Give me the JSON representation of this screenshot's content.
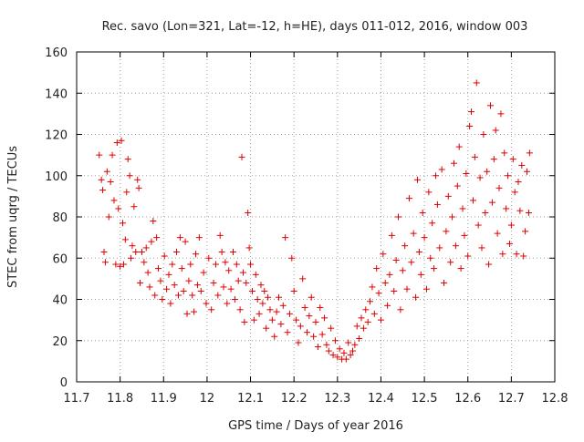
{
  "chart_data": {
    "type": "scatter",
    "title": "Rec. savo (Lon=321, Lat=-12, h=HE), days 011-012, 2016, window 003",
    "xlabel": "GPS time / Days of year 2016",
    "ylabel": "STEC from uqrg / TECUs",
    "xlim": [
      11.7,
      12.8
    ],
    "ylim": [
      0,
      160
    ],
    "xticks": [
      11.7,
      11.8,
      11.9,
      12,
      12.1,
      12.2,
      12.3,
      12.4,
      12.5,
      12.6,
      12.7,
      12.8
    ],
    "xtick_labels": [
      "11.7",
      "11.8",
      "11.9",
      "12",
      "12.1",
      "12.2",
      "12.3",
      "12.4",
      "12.5",
      "12.6",
      "12.7",
      "12.8"
    ],
    "yticks": [
      0,
      20,
      40,
      60,
      80,
      100,
      120,
      140,
      160
    ],
    "ytick_labels": [
      "0",
      "20",
      "40",
      "60",
      "80",
      "100",
      "120",
      "140",
      "160"
    ],
    "grid": true,
    "marker": "+",
    "color": "#dd0000",
    "series": [
      {
        "name": "STEC",
        "points": [
          [
            11.752,
            110
          ],
          [
            11.757,
            98
          ],
          [
            11.76,
            93
          ],
          [
            11.763,
            63
          ],
          [
            11.766,
            58
          ],
          [
            11.77,
            102
          ],
          [
            11.774,
            80
          ],
          [
            11.778,
            97
          ],
          [
            11.782,
            110
          ],
          [
            11.786,
            88
          ],
          [
            11.79,
            57
          ],
          [
            11.793,
            116
          ],
          [
            11.796,
            84
          ],
          [
            11.8,
            56
          ],
          [
            11.803,
            117
          ],
          [
            11.806,
            77
          ],
          [
            11.808,
            57
          ],
          [
            11.812,
            69
          ],
          [
            11.815,
            92
          ],
          [
            11.818,
            108
          ],
          [
            11.822,
            100
          ],
          [
            11.825,
            60
          ],
          [
            11.828,
            66
          ],
          [
            11.832,
            85
          ],
          [
            11.836,
            63
          ],
          [
            11.84,
            98
          ],
          [
            11.843,
            94
          ],
          [
            11.846,
            48
          ],
          [
            11.85,
            63
          ],
          [
            11.855,
            58
          ],
          [
            11.86,
            65
          ],
          [
            11.864,
            53
          ],
          [
            11.868,
            46
          ],
          [
            11.872,
            68
          ],
          [
            11.876,
            78
          ],
          [
            11.88,
            42
          ],
          [
            11.884,
            70
          ],
          [
            11.888,
            55
          ],
          [
            11.893,
            49
          ],
          [
            11.897,
            40
          ],
          [
            11.902,
            61
          ],
          [
            11.907,
            45
          ],
          [
            11.912,
            52
          ],
          [
            11.916,
            38
          ],
          [
            11.92,
            57
          ],
          [
            11.925,
            47
          ],
          [
            11.93,
            63
          ],
          [
            11.934,
            42
          ],
          [
            11.938,
            70
          ],
          [
            11.942,
            55
          ],
          [
            11.946,
            44
          ],
          [
            11.95,
            68
          ],
          [
            11.954,
            33
          ],
          [
            11.958,
            49
          ],
          [
            11.962,
            57
          ],
          [
            11.966,
            42
          ],
          [
            11.97,
            34
          ],
          [
            11.974,
            62
          ],
          [
            11.978,
            47
          ],
          [
            11.982,
            70
          ],
          [
            11.986,
            44
          ],
          [
            11.992,
            53
          ],
          [
            11.998,
            38
          ],
          [
            12.004,
            60
          ],
          [
            12.01,
            35
          ],
          [
            12.015,
            48
          ],
          [
            12.02,
            57
          ],
          [
            12.025,
            42
          ],
          [
            12.03,
            71
          ],
          [
            12.034,
            63
          ],
          [
            12.038,
            46
          ],
          [
            12.042,
            58
          ],
          [
            12.046,
            38
          ],
          [
            12.05,
            54
          ],
          [
            12.055,
            45
          ],
          [
            12.06,
            63
          ],
          [
            12.064,
            40
          ],
          [
            12.068,
            57
          ],
          [
            12.072,
            49
          ],
          [
            12.076,
            35
          ],
          [
            12.08,
            109
          ],
          [
            12.083,
            53
          ],
          [
            12.086,
            29
          ],
          [
            12.09,
            48
          ],
          [
            12.094,
            82
          ],
          [
            12.097,
            65
          ],
          [
            12.1,
            57
          ],
          [
            12.104,
            44
          ],
          [
            12.108,
            30
          ],
          [
            12.112,
            52
          ],
          [
            12.116,
            40
          ],
          [
            12.12,
            33
          ],
          [
            12.124,
            47
          ],
          [
            12.128,
            38
          ],
          [
            12.132,
            44
          ],
          [
            12.136,
            26
          ],
          [
            12.14,
            41
          ],
          [
            12.145,
            35
          ],
          [
            12.15,
            30
          ],
          [
            12.155,
            22
          ],
          [
            12.16,
            34
          ],
          [
            12.165,
            41
          ],
          [
            12.17,
            28
          ],
          [
            12.175,
            37
          ],
          [
            12.18,
            70
          ],
          [
            12.185,
            24
          ],
          [
            12.19,
            33
          ],
          [
            12.195,
            60
          ],
          [
            12.2,
            44
          ],
          [
            12.205,
            30
          ],
          [
            12.21,
            19
          ],
          [
            12.215,
            27
          ],
          [
            12.22,
            50
          ],
          [
            12.225,
            36
          ],
          [
            12.23,
            24
          ],
          [
            12.235,
            32
          ],
          [
            12.24,
            41
          ],
          [
            12.245,
            22
          ],
          [
            12.25,
            29
          ],
          [
            12.255,
            17
          ],
          [
            12.26,
            36
          ],
          [
            12.265,
            23
          ],
          [
            12.27,
            31
          ],
          [
            12.275,
            18
          ],
          [
            12.28,
            15
          ],
          [
            12.285,
            26
          ],
          [
            12.29,
            13
          ],
          [
            12.295,
            20
          ],
          [
            12.3,
            12
          ],
          [
            12.305,
            16
          ],
          [
            12.31,
            11
          ],
          [
            12.315,
            14
          ],
          [
            12.32,
            11
          ],
          [
            12.325,
            19
          ],
          [
            12.33,
            13
          ],
          [
            12.335,
            15
          ],
          [
            12.34,
            18
          ],
          [
            12.345,
            27
          ],
          [
            12.35,
            21
          ],
          [
            12.355,
            31
          ],
          [
            12.36,
            26
          ],
          [
            12.365,
            35
          ],
          [
            12.37,
            29
          ],
          [
            12.375,
            39
          ],
          [
            12.38,
            46
          ],
          [
            12.385,
            33
          ],
          [
            12.39,
            55
          ],
          [
            12.395,
            43
          ],
          [
            12.4,
            30
          ],
          [
            12.405,
            62
          ],
          [
            12.41,
            48
          ],
          [
            12.415,
            37
          ],
          [
            12.42,
            52
          ],
          [
            12.425,
            71
          ],
          [
            12.43,
            44
          ],
          [
            12.435,
            59
          ],
          [
            12.44,
            80
          ],
          [
            12.445,
            35
          ],
          [
            12.45,
            54
          ],
          [
            12.455,
            66
          ],
          [
            12.46,
            45
          ],
          [
            12.465,
            89
          ],
          [
            12.47,
            58
          ],
          [
            12.475,
            72
          ],
          [
            12.48,
            41
          ],
          [
            12.484,
            98
          ],
          [
            12.488,
            63
          ],
          [
            12.492,
            52
          ],
          [
            12.496,
            82
          ],
          [
            12.5,
            70
          ],
          [
            12.505,
            45
          ],
          [
            12.51,
            92
          ],
          [
            12.514,
            60
          ],
          [
            12.518,
            77
          ],
          [
            12.522,
            55
          ],
          [
            12.526,
            100
          ],
          [
            12.53,
            86
          ],
          [
            12.535,
            65
          ],
          [
            12.54,
            103
          ],
          [
            12.545,
            48
          ],
          [
            12.55,
            73
          ],
          [
            12.555,
            90
          ],
          [
            12.56,
            58
          ],
          [
            12.564,
            80
          ],
          [
            12.568,
            106
          ],
          [
            12.572,
            66
          ],
          [
            12.576,
            95
          ],
          [
            12.58,
            114
          ],
          [
            12.584,
            55
          ],
          [
            12.588,
            84
          ],
          [
            12.592,
            71
          ],
          [
            12.596,
            101
          ],
          [
            12.6,
            61
          ],
          [
            12.604,
            124
          ],
          [
            12.608,
            131
          ],
          [
            12.612,
            88
          ],
          [
            12.616,
            109
          ],
          [
            12.62,
            145
          ],
          [
            12.624,
            76
          ],
          [
            12.628,
            99
          ],
          [
            12.632,
            65
          ],
          [
            12.636,
            120
          ],
          [
            12.64,
            82
          ],
          [
            12.644,
            102
          ],
          [
            12.648,
            57
          ],
          [
            12.652,
            134
          ],
          [
            12.656,
            87
          ],
          [
            12.66,
            108
          ],
          [
            12.664,
            122
          ],
          [
            12.668,
            72
          ],
          [
            12.672,
            94
          ],
          [
            12.676,
            130
          ],
          [
            12.68,
            62
          ],
          [
            12.684,
            111
          ],
          [
            12.688,
            84
          ],
          [
            12.692,
            100
          ],
          [
            12.696,
            67
          ],
          [
            12.7,
            76
          ],
          [
            12.704,
            108
          ],
          [
            12.708,
            92
          ],
          [
            12.712,
            62
          ],
          [
            12.716,
            97
          ],
          [
            12.72,
            83
          ],
          [
            12.724,
            105
          ],
          [
            12.728,
            61
          ],
          [
            12.732,
            73
          ],
          [
            12.736,
            102
          ],
          [
            12.74,
            82
          ],
          [
            12.742,
            111
          ]
        ]
      }
    ]
  }
}
